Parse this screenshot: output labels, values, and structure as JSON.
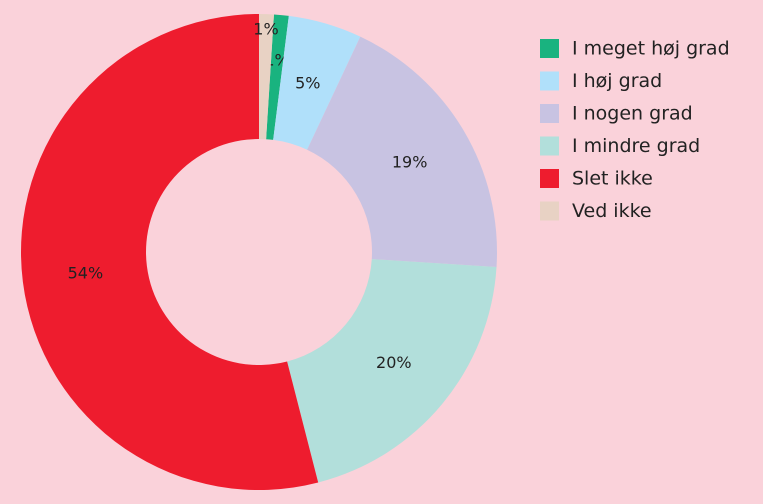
{
  "chart_data": {
    "type": "donut",
    "categories": [
      "I meget høj grad",
      "I høj grad",
      "I nogen grad",
      "I mindre grad",
      "Slet ikke",
      "Ved ikke"
    ],
    "values": [
      1,
      5,
      19,
      20,
      54,
      1
    ],
    "value_labels": [
      "1%",
      "5%",
      "19%",
      "20%",
      "54%",
      "1%"
    ],
    "colors": [
      "#19b37f",
      "#b0e0fa",
      "#c8c3e2",
      "#b2dfdb",
      "#ee1c2e",
      "#e8d2c4"
    ],
    "legend": "right"
  }
}
